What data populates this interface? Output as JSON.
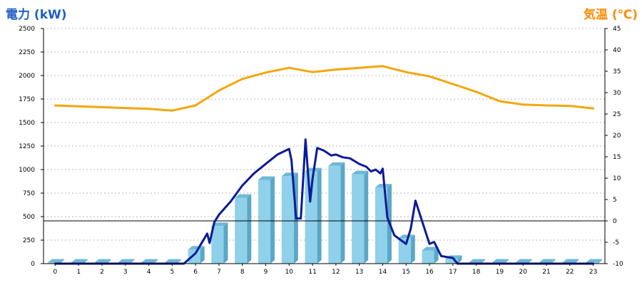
{
  "title_left": "電力 (kW)",
  "title_right": "気温 (℃)",
  "colors": {
    "bar_front": "#8fd0ea",
    "bar_side": "#5aa7c6",
    "bar_top": "#6fb8d6",
    "power_line": "#0a1a99",
    "temp_line": "#f4a60d",
    "grid": "#b8b8b8",
    "axis": "#000000",
    "title_left": "#1f5fc4",
    "title_right": "#ff8a00"
  },
  "chart_data": {
    "type": "bar",
    "categories": [
      "0",
      "1",
      "2",
      "3",
      "4",
      "5",
      "6",
      "7",
      "8",
      "9",
      "10",
      "11",
      "12",
      "13",
      "14",
      "15",
      "16",
      "17",
      "18",
      "19",
      "20",
      "21",
      "22",
      "23"
    ],
    "y_left": {
      "label": "電力 (kW)",
      "ylim": [
        0,
        2500
      ],
      "ticks": [
        0,
        250,
        500,
        750,
        1000,
        1250,
        1500,
        1750,
        2000,
        2250,
        2500
      ]
    },
    "y_right": {
      "label": "気温 (℃)",
      "ylim": [
        -10,
        45
      ],
      "ticks": [
        -10,
        -5,
        0,
        5,
        10,
        15,
        20,
        25,
        30,
        35,
        40,
        45
      ]
    },
    "grid": true,
    "series": [
      {
        "kind": "bar",
        "axis": "left",
        "values": [
          10,
          10,
          10,
          10,
          10,
          10,
          150,
          400,
          700,
          890,
          930,
          980,
          1040,
          950,
          810,
          270,
          140,
          50,
          10,
          10,
          10,
          10,
          10,
          10
        ]
      },
      {
        "kind": "line",
        "axis": "left",
        "x": [
          0,
          1,
          2,
          3,
          4,
          5,
          5.5,
          6,
          6.5,
          6.6,
          6.8,
          7,
          7.5,
          8,
          8.5,
          9,
          9.5,
          10,
          10.1,
          10.3,
          10.5,
          10.7,
          10.9,
          11,
          11.2,
          11.5,
          11.8,
          12,
          12.3,
          12.6,
          13,
          13.3,
          13.5,
          13.7,
          13.9,
          14,
          14.2,
          14.5,
          15,
          15.2,
          15.4,
          15.7,
          16,
          16.2,
          16.5,
          17,
          17.2,
          18,
          19,
          20,
          21,
          22,
          23
        ],
        "values": [
          0,
          0,
          0,
          0,
          0,
          0,
          0,
          110,
          320,
          220,
          440,
          520,
          660,
          830,
          960,
          1060,
          1160,
          1220,
          1100,
          480,
          480,
          1320,
          660,
          900,
          1230,
          1200,
          1150,
          1160,
          1130,
          1120,
          1060,
          1030,
          980,
          1000,
          960,
          1010,
          490,
          300,
          210,
          370,
          670,
          440,
          210,
          230,
          80,
          60,
          0,
          0,
          0,
          0,
          0,
          0,
          0
        ]
      },
      {
        "kind": "line",
        "axis": "right",
        "values": [
          27,
          26.8,
          26.6,
          26.4,
          26.2,
          25.8,
          27,
          30.5,
          33.2,
          34.7,
          35.8,
          34.8,
          35.4,
          35.8,
          36.2,
          34.8,
          33.8,
          32,
          30.2,
          28,
          27.2,
          27,
          26.9,
          26.3
        ]
      }
    ],
    "annotations": [
      {
        "type": "hline",
        "axis": "right",
        "value": 0
      }
    ]
  }
}
